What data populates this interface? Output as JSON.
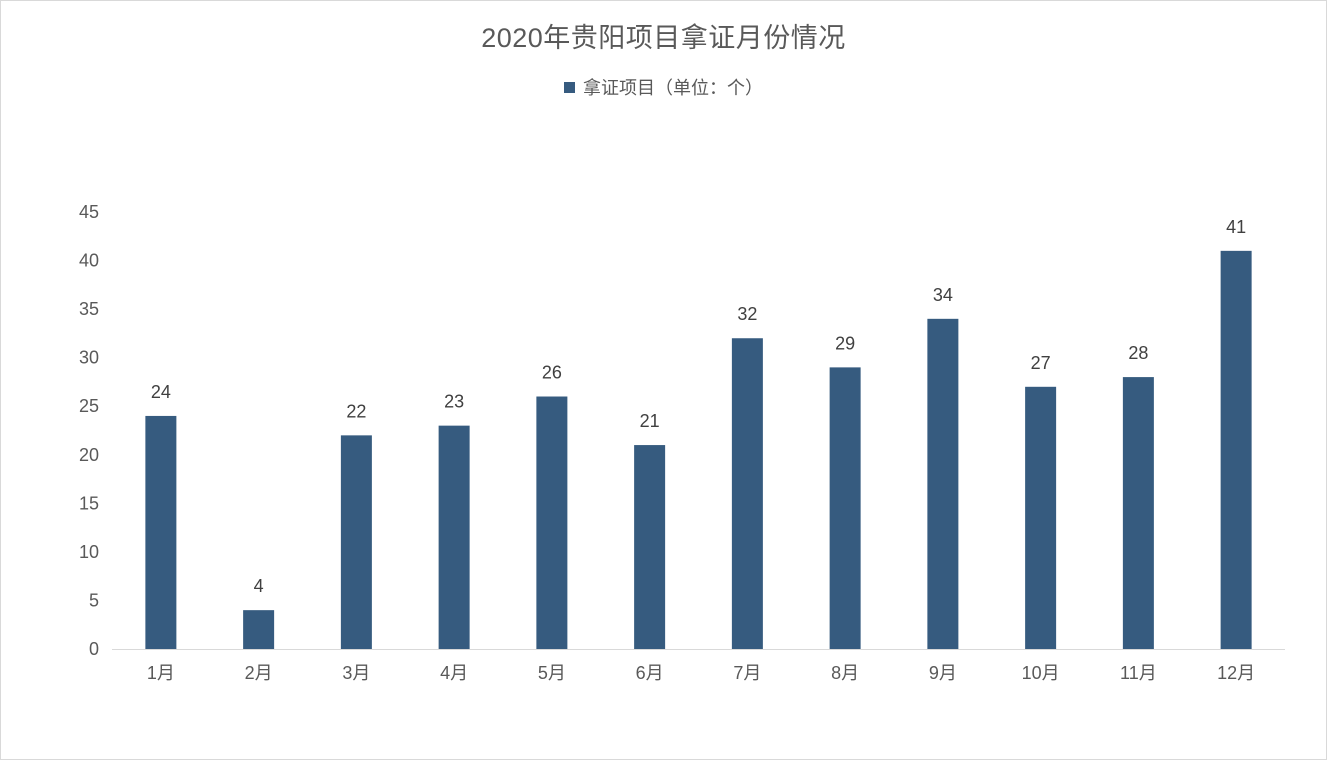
{
  "chart_data": {
    "type": "bar",
    "title": "2020年贵阳项目拿证月份情况",
    "categories": [
      "1月",
      "2月",
      "3月",
      "4月",
      "5月",
      "6月",
      "7月",
      "8月",
      "9月",
      "10月",
      "11月",
      "12月"
    ],
    "series": [
      {
        "name": "拿证项目（单位：个）",
        "values": [
          24,
          4,
          22,
          23,
          26,
          21,
          32,
          29,
          34,
          27,
          28,
          41
        ],
        "color": "#365B7F"
      }
    ],
    "ylim": [
      0,
      45
    ],
    "yticks": [
      0,
      5,
      10,
      15,
      20,
      25,
      30,
      35,
      40,
      45
    ],
    "xlabel": "",
    "ylabel": "",
    "grid": false,
    "legend": "top",
    "data_labels": true
  }
}
